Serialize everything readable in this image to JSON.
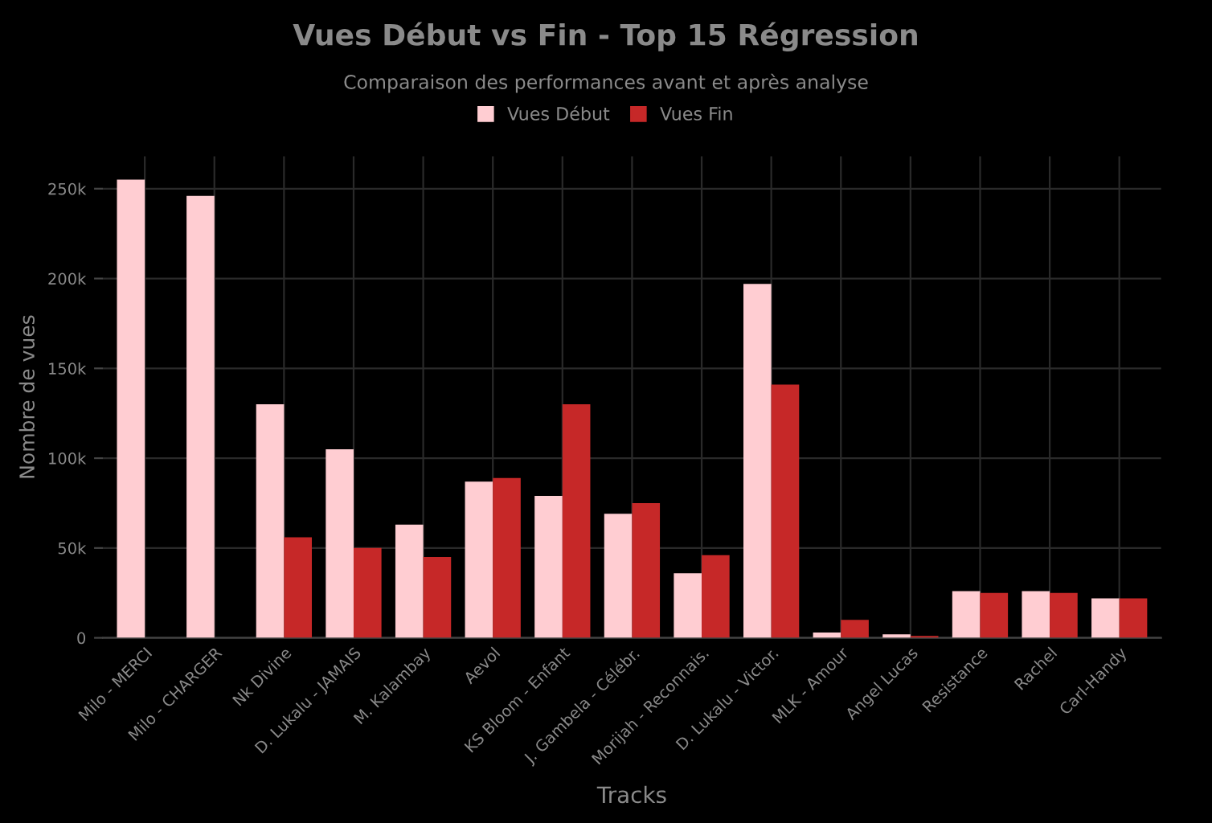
{
  "chart_data": {
    "type": "bar",
    "title": "Vues Début vs Fin - Top 15 Régression",
    "subtitle": "Comparaison des performances avant et après analyse",
    "xlabel": "Tracks",
    "ylabel": "Nombre de vues",
    "categories": [
      "Milo - MERCI",
      "Milo - CHARGER",
      "Nk Divine",
      "D. Lukalu - JAMAIS",
      "M. Kalambay",
      "Aevol",
      "KS Bloom - Enfant",
      "J. Gambela - Célébr.",
      "Morijah - Reconnais.",
      "D. Lukalu - Victor.",
      "MLK - Amour",
      "Angel Lucas",
      "Resistance",
      "Rachel",
      "Carl-Handy"
    ],
    "series": [
      {
        "name": "Vues Début",
        "color": "#ffcdd2",
        "values": [
          255000,
          246000,
          130000,
          105000,
          63000,
          87000,
          79000,
          69000,
          36000,
          197000,
          3000,
          2000,
          26000,
          26000,
          22000
        ]
      },
      {
        "name": "Vues Fin",
        "color": "#c62828",
        "values": [
          0,
          0,
          56000,
          50000,
          45000,
          89000,
          130000,
          75000,
          46000,
          141000,
          10000,
          1000,
          25000,
          25000,
          22000
        ]
      }
    ],
    "ylim": [
      0,
      268000
    ],
    "yticks": [
      {
        "value": 0,
        "label": "0"
      },
      {
        "value": 50000,
        "label": "50k"
      },
      {
        "value": 100000,
        "label": "100k"
      },
      {
        "value": 150000,
        "label": "150k"
      },
      {
        "value": 200000,
        "label": "200k"
      },
      {
        "value": 250000,
        "label": "250k"
      }
    ],
    "grid": true,
    "legend": "top"
  }
}
